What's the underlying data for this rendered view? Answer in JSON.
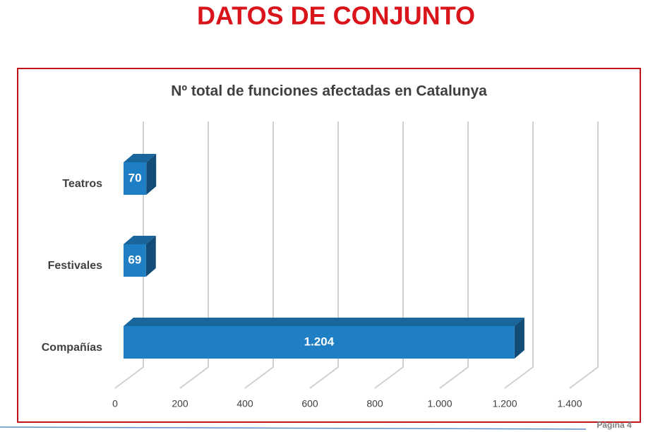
{
  "slide": {
    "title": "DATOS DE CONJUNTO",
    "page_label": "Página 4"
  },
  "chart_data": {
    "type": "bar3d",
    "orientation": "horizontal",
    "title": "Nº total de funciones afectadas en Catalunya",
    "categories": [
      "Teatros",
      "Festivales",
      "Compañías"
    ],
    "values": [
      70,
      69,
      1204
    ],
    "value_labels": [
      "70",
      "69",
      "1.204"
    ],
    "color": "#1f7fc4",
    "xlim": [
      0,
      1400
    ],
    "xticks": [
      0,
      200,
      400,
      600,
      800,
      {
        "value": 1000,
        "label": "1.000"
      },
      {
        "value": 1200,
        "label": "1.200"
      },
      {
        "value": 1400,
        "label": "1.400"
      }
    ],
    "grid": true
  }
}
